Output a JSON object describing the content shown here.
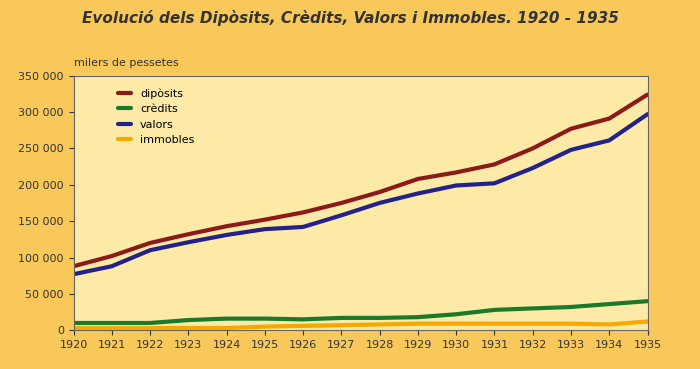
{
  "chart_data": {
    "type": "line",
    "title": "Evolució dels Dipòsits, Crèdits, Valors i Immobles. 1920 - 1935",
    "ylabel": "milers de pessetes",
    "x": [
      1920,
      1921,
      1922,
      1923,
      1924,
      1925,
      1926,
      1927,
      1928,
      1929,
      1930,
      1931,
      1932,
      1933,
      1934,
      1935
    ],
    "series": [
      {
        "name": "dipòsits",
        "color": "#8b1a1a",
        "values": [
          88000,
          102000,
          120000,
          132000,
          143000,
          152000,
          162000,
          175000,
          190000,
          208000,
          217000,
          228000,
          250000,
          277000,
          291000,
          324000
        ]
      },
      {
        "name": "crèdits",
        "color": "#1a7a2a",
        "values": [
          10000,
          10000,
          10000,
          14000,
          16000,
          16000,
          15000,
          17000,
          17000,
          18000,
          22000,
          28000,
          30000,
          32000,
          36000,
          40000
        ]
      },
      {
        "name": "valors",
        "color": "#22228a",
        "values": [
          77000,
          88000,
          110000,
          121000,
          131000,
          139000,
          142000,
          158000,
          175000,
          188000,
          199000,
          202000,
          223000,
          248000,
          261000,
          297000
        ]
      },
      {
        "name": "immobles",
        "color": "#f5a800",
        "values": [
          3000,
          3000,
          3000,
          3000,
          3000,
          5000,
          6000,
          7000,
          8000,
          9000,
          9000,
          9000,
          9000,
          9000,
          8000,
          12000
        ]
      }
    ],
    "xlim": [
      1920,
      1935
    ],
    "xticks": [
      1920,
      1921,
      1922,
      1923,
      1924,
      1925,
      1926,
      1927,
      1928,
      1929,
      1930,
      1931,
      1932,
      1933,
      1934,
      1935
    ],
    "ylim": [
      0,
      350000
    ],
    "yticks": [
      0,
      {
        "value": 50000,
        "label": "50 000"
      },
      {
        "value": 100000,
        "label": "100 000"
      },
      {
        "value": 150000,
        "label": "150 000"
      },
      {
        "value": 200000,
        "label": "200 000"
      },
      {
        "value": 250000,
        "label": "250 000"
      },
      {
        "value": 300000,
        "label": "300 000"
      },
      {
        "value": 350000,
        "label": "350 000"
      }
    ],
    "grid": false,
    "legend": "upper left"
  }
}
